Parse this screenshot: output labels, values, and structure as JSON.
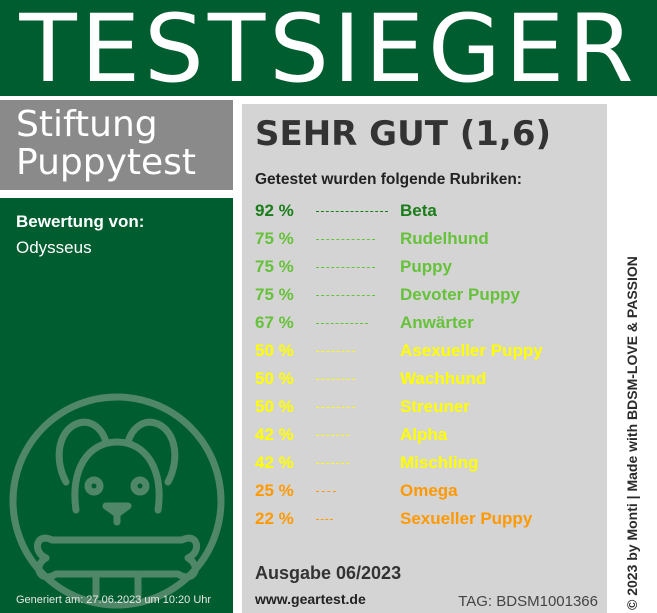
{
  "header": {
    "title": "TESTSIEGER"
  },
  "brand": {
    "line1": "Stiftung",
    "line2": "Puppytest"
  },
  "left": {
    "rating_label": "Bewertung von:",
    "rating_name": "Odysseus",
    "mascot_icon": "dog-with-bone-icon",
    "generated": "Generiert am: 27.06.2023 um 10:20 Uhr"
  },
  "main": {
    "grade": "SEHR GUT (1,6)",
    "rubriken_title": "Getestet wurden folgende Rubriken:",
    "rows": [
      {
        "percent": "92 %",
        "category": "Beta",
        "value": 92,
        "color": "#1a7d1a"
      },
      {
        "percent": "75 %",
        "category": "Rudelhund",
        "value": 75,
        "color": "#66c23a"
      },
      {
        "percent": "75 %",
        "category": "Puppy",
        "value": 75,
        "color": "#66c23a"
      },
      {
        "percent": "75 %",
        "category": "Devoter Puppy",
        "value": 75,
        "color": "#66c23a"
      },
      {
        "percent": "67 %",
        "category": "Anwärter",
        "value": 67,
        "color": "#66c23a"
      },
      {
        "percent": "50 %",
        "category": "Asexueller Puppy",
        "value": 50,
        "color": "#ffff00"
      },
      {
        "percent": "50 %",
        "category": "Wachhund",
        "value": 50,
        "color": "#ffff00"
      },
      {
        "percent": "50 %",
        "category": "Streuner",
        "value": 50,
        "color": "#ffff00"
      },
      {
        "percent": "42 %",
        "category": "Alpha",
        "value": 42,
        "color": "#ffff00"
      },
      {
        "percent": "42 %",
        "category": "Mischling",
        "value": 42,
        "color": "#ffff00"
      },
      {
        "percent": "25 %",
        "category": "Omega",
        "value": 25,
        "color": "#ff9900"
      },
      {
        "percent": "22 %",
        "category": "Sexueller Puppy",
        "value": 22,
        "color": "#ff9900"
      }
    ],
    "ausgabe": "Ausgabe 06/2023",
    "website": "www.geartest.de",
    "tag": "TAG: BDSM1001366"
  },
  "side_credit": "© 2023 by Monti | Made with BDSM-LOVE & PASSION",
  "colors": {
    "header_green": "#005d2f",
    "panel_gray": "#d4d4d4",
    "brand_gray": "#8a8a8a"
  }
}
